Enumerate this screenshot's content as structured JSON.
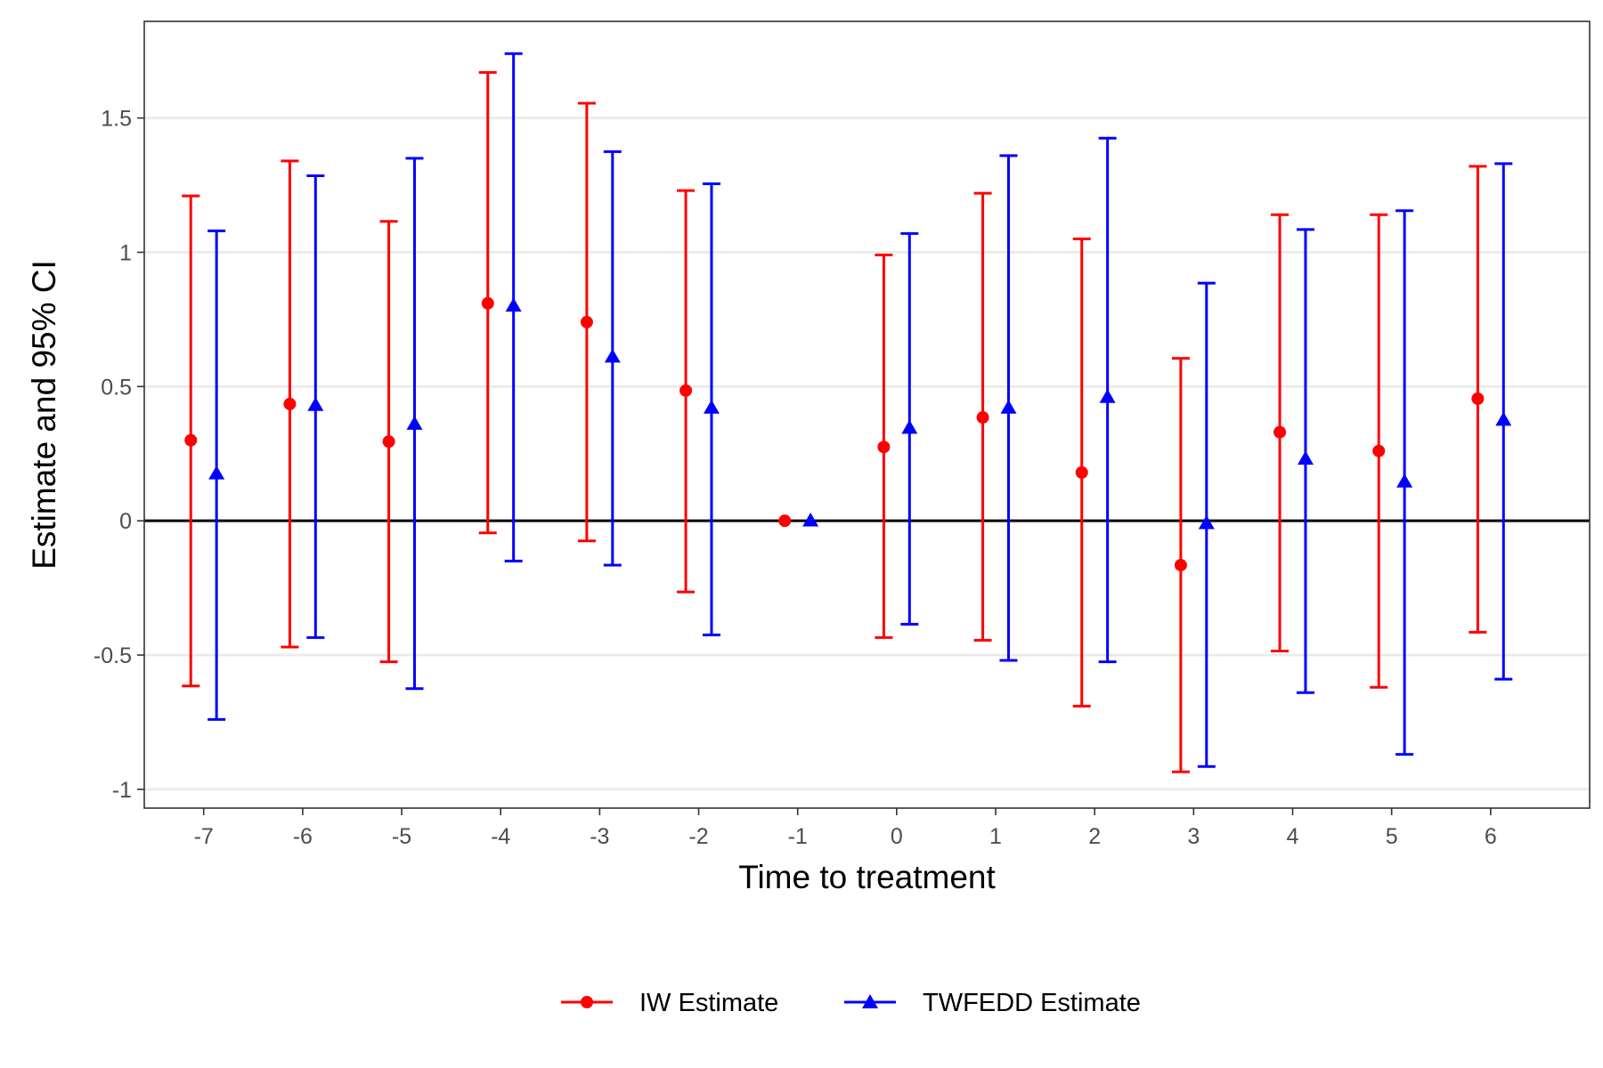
{
  "chart_data": {
    "type": "scatter",
    "subtype": "point-estimates-with-95-percent-confidence-intervals",
    "xlabel": "Time to treatment",
    "ylabel": "Estimate and 95% CI",
    "x_ticks": [
      "-7",
      "-6",
      "-5",
      "-4",
      "-3",
      "-2",
      "-1",
      "0",
      "1",
      "2",
      "3",
      "4",
      "5",
      "6"
    ],
    "y_ticks": [
      "-1",
      "-0.5",
      "0",
      "0.5",
      "1",
      "1.5"
    ],
    "xlim": [
      -7.6,
      7.0
    ],
    "ylim": [
      -1.07,
      1.86
    ],
    "grid": "horizontal major gridlines",
    "reference_line_y": 0,
    "legend_position": "bottom",
    "series": [
      {
        "name": "IW Estimate",
        "color": "#ff0000",
        "marker": "circle",
        "dodge": -0.13,
        "x": [
          -7,
          -6,
          -5,
          -4,
          -3,
          -2,
          -1,
          0,
          1,
          2,
          3,
          4,
          5,
          6
        ],
        "estimate": [
          0.3,
          0.435,
          0.295,
          0.81,
          0.74,
          0.485,
          0.0,
          0.275,
          0.385,
          0.18,
          -0.165,
          0.33,
          0.26,
          0.455
        ],
        "ci_low": [
          -0.615,
          -0.47,
          -0.525,
          -0.045,
          -0.075,
          -0.265,
          0.0,
          -0.435,
          -0.445,
          -0.69,
          -0.935,
          -0.485,
          -0.62,
          -0.415
        ],
        "ci_high": [
          1.21,
          1.34,
          1.115,
          1.67,
          1.555,
          1.23,
          0.0,
          0.99,
          1.22,
          1.05,
          0.605,
          1.14,
          1.14,
          1.32
        ]
      },
      {
        "name": "TWFEDD Estimate",
        "color": "#0000ff",
        "marker": "triangle",
        "dodge": 0.13,
        "x": [
          -7,
          -6,
          -5,
          -4,
          -3,
          -2,
          -1,
          0,
          1,
          2,
          3,
          4,
          5,
          6
        ],
        "estimate": [
          0.175,
          0.43,
          0.36,
          0.8,
          0.61,
          0.42,
          0.0,
          0.345,
          0.42,
          0.46,
          -0.01,
          0.23,
          0.145,
          0.375
        ],
        "ci_low": [
          -0.74,
          -0.435,
          -0.625,
          -0.15,
          -0.165,
          -0.425,
          0.0,
          -0.385,
          -0.52,
          -0.525,
          -0.915,
          -0.64,
          -0.87,
          -0.59
        ],
        "ci_high": [
          1.08,
          1.285,
          1.35,
          1.74,
          1.375,
          1.255,
          0.0,
          1.07,
          1.36,
          1.425,
          0.885,
          1.085,
          1.155,
          1.33
        ]
      }
    ]
  }
}
